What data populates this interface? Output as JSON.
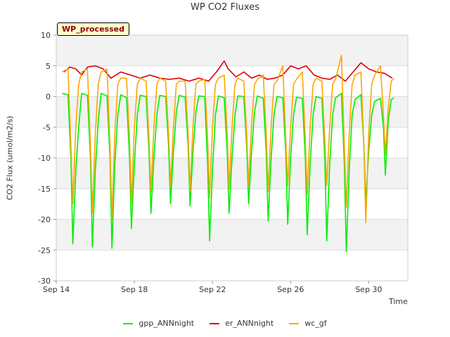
{
  "chart_data": {
    "type": "line",
    "title": "WP CO2 Fluxes",
    "badge": "WP_processed",
    "xlabel": "Time",
    "ylabel": "CO2 Flux (umol/m2/s)",
    "xlim": [
      0,
      18
    ],
    "ylim": [
      -30,
      10
    ],
    "yticks": [
      10,
      5,
      0,
      -5,
      -10,
      -15,
      -20,
      -25,
      -30
    ],
    "xticks": [
      {
        "value": 0,
        "label": "Sep 14"
      },
      {
        "value": 4,
        "label": "Sep 18"
      },
      {
        "value": 8,
        "label": "Sep 22"
      },
      {
        "value": 12,
        "label": "Sep 26"
      },
      {
        "value": 16,
        "label": "Sep 30"
      }
    ],
    "x_units": "days since Sep 14",
    "series": [
      {
        "name": "gpp_ANNnight",
        "color": "#00ee00",
        "x": [
          0.3,
          0.6,
          0.75,
          0.85,
          1.0,
          1.15,
          1.3,
          1.6,
          1.75,
          1.85,
          2.0,
          2.15,
          2.3,
          2.6,
          2.75,
          2.85,
          3.0,
          3.15,
          3.3,
          3.6,
          3.75,
          3.85,
          4.0,
          4.15,
          4.3,
          4.6,
          4.75,
          4.85,
          5.0,
          5.15,
          5.3,
          5.6,
          5.75,
          5.85,
          6.0,
          6.15,
          6.3,
          6.6,
          6.75,
          6.85,
          7.0,
          7.15,
          7.3,
          7.6,
          7.75,
          7.85,
          8.0,
          8.15,
          8.3,
          8.6,
          8.75,
          8.85,
          9.0,
          9.15,
          9.3,
          9.6,
          9.75,
          9.85,
          10.0,
          10.15,
          10.3,
          10.6,
          10.75,
          10.85,
          11.0,
          11.15,
          11.3,
          11.6,
          11.75,
          11.85,
          12.0,
          12.15,
          12.3,
          12.6,
          12.75,
          12.85,
          13.0,
          13.15,
          13.3,
          13.6,
          13.75,
          13.85,
          14.0,
          14.15,
          14.3,
          14.6,
          14.75,
          14.85,
          15.0,
          15.15,
          15.3,
          15.6,
          15.75,
          15.85,
          16.0,
          16.15,
          16.3,
          16.6,
          16.75,
          16.85,
          17.0,
          17.15,
          17.3
        ],
        "values": [
          0.5,
          0.3,
          -10.0,
          -24.0,
          -12.0,
          -5.0,
          0.5,
          0.2,
          -10.0,
          -24.5,
          -12.0,
          -4.0,
          0.5,
          0.1,
          -10.0,
          -24.7,
          -11.0,
          -3.0,
          0.3,
          -0.2,
          -10.0,
          -21.5,
          -11.0,
          -3.0,
          0.2,
          0.0,
          -9.0,
          -19.0,
          -10.0,
          -3.0,
          0.2,
          0.0,
          -8.0,
          -17.5,
          -9.0,
          -2.5,
          0.2,
          -0.1,
          -8.0,
          -17.8,
          -9.0,
          -2.5,
          0.1,
          0.0,
          -11.0,
          -23.5,
          -12.0,
          -3.0,
          0.1,
          -0.2,
          -9.0,
          -19.0,
          -10.0,
          -3.0,
          0.1,
          0.0,
          -8.0,
          -17.5,
          -9.0,
          -2.5,
          0.1,
          -0.3,
          -9.0,
          -20.3,
          -10.0,
          -3.0,
          0.0,
          -0.2,
          -9.0,
          -20.8,
          -10.0,
          -3.0,
          -0.1,
          -0.3,
          -10.0,
          -22.5,
          -11.0,
          -3.0,
          0.0,
          -0.3,
          -10.0,
          -23.5,
          -11.0,
          -3.0,
          -0.2,
          0.5,
          -11.0,
          -25.3,
          -12.0,
          -3.0,
          -0.5,
          0.3,
          -8.0,
          -17.0,
          -9.0,
          -3.0,
          -0.8,
          -0.3,
          -5.0,
          -12.8,
          -4.0,
          -0.5,
          -0.2
        ]
      },
      {
        "name": "er_ANNnight",
        "color": "#dd0000",
        "x": [
          0.4,
          0.7,
          1.0,
          1.3,
          1.6,
          2.0,
          2.4,
          2.8,
          3.3,
          3.8,
          4.3,
          4.8,
          5.3,
          5.8,
          6.3,
          6.8,
          7.3,
          7.8,
          8.2,
          8.6,
          8.8,
          9.2,
          9.6,
          10.0,
          10.4,
          10.8,
          11.2,
          11.6,
          12.0,
          12.4,
          12.8,
          13.2,
          13.6,
          14.0,
          14.4,
          14.8,
          15.2,
          15.6,
          16.0,
          16.4,
          16.8,
          17.2
        ],
        "values": [
          4.0,
          4.8,
          4.5,
          3.5,
          4.8,
          5.0,
          4.5,
          3.0,
          4.0,
          3.5,
          3.0,
          3.5,
          3.0,
          2.8,
          3.0,
          2.5,
          3.0,
          2.5,
          4.0,
          5.8,
          4.5,
          3.2,
          4.0,
          3.0,
          3.5,
          2.8,
          3.0,
          3.5,
          5.0,
          4.5,
          5.0,
          3.5,
          3.0,
          2.8,
          3.5,
          2.5,
          4.0,
          5.5,
          4.5,
          4.0,
          3.8,
          3.0
        ]
      },
      {
        "name": "wc_gf",
        "color": "#ffa500",
        "x": [
          0.3,
          0.6,
          0.75,
          0.85,
          1.0,
          1.15,
          1.3,
          1.6,
          1.75,
          1.85,
          2.0,
          2.15,
          2.3,
          2.6,
          2.75,
          2.85,
          3.0,
          3.15,
          3.3,
          3.6,
          3.75,
          3.85,
          4.0,
          4.15,
          4.3,
          4.6,
          4.75,
          4.85,
          5.0,
          5.15,
          5.3,
          5.6,
          5.75,
          5.85,
          6.0,
          6.15,
          6.3,
          6.6,
          6.75,
          6.85,
          7.0,
          7.15,
          7.3,
          7.6,
          7.75,
          7.85,
          8.0,
          8.15,
          8.3,
          8.6,
          8.75,
          8.85,
          9.0,
          9.15,
          9.3,
          9.6,
          9.75,
          9.85,
          10.0,
          10.15,
          10.3,
          10.6,
          10.75,
          10.85,
          11.0,
          11.15,
          11.3,
          11.6,
          11.75,
          11.85,
          12.0,
          12.15,
          12.3,
          12.6,
          12.75,
          12.85,
          13.0,
          13.15,
          13.3,
          13.6,
          13.75,
          13.85,
          14.0,
          14.15,
          14.3,
          14.6,
          14.75,
          14.85,
          15.0,
          15.15,
          15.3,
          15.6,
          15.75,
          15.85,
          16.0,
          16.15,
          16.3,
          16.6,
          16.75,
          16.85,
          17.0,
          17.15,
          17.3
        ],
        "values": [
          4.0,
          4.5,
          -8.0,
          -17.5,
          -5.0,
          2.0,
          4.0,
          4.5,
          -8.0,
          -19.0,
          -6.0,
          2.0,
          4.0,
          4.5,
          -8.0,
          -20.0,
          -6.0,
          2.0,
          3.0,
          3.0,
          -7.0,
          -17.5,
          -5.0,
          2.0,
          3.0,
          2.5,
          -7.0,
          -15.5,
          -5.0,
          2.0,
          3.0,
          2.5,
          -6.0,
          -14.5,
          -5.0,
          2.0,
          2.5,
          2.5,
          -6.0,
          -15.5,
          -5.0,
          2.0,
          2.5,
          2.8,
          -7.0,
          -16.5,
          -5.0,
          2.0,
          3.0,
          3.5,
          -6.0,
          -15.0,
          -5.0,
          2.0,
          3.0,
          2.5,
          -6.0,
          -14.5,
          -4.5,
          2.0,
          2.8,
          3.5,
          -6.0,
          -15.5,
          -5.0,
          2.0,
          2.5,
          5.0,
          -7.0,
          -14.5,
          -5.0,
          2.0,
          2.8,
          4.0,
          -7.0,
          -16.0,
          -5.0,
          2.0,
          3.0,
          2.5,
          -7.0,
          -14.5,
          -5.0,
          2.0,
          2.8,
          6.7,
          -8.0,
          -18.0,
          -6.0,
          2.0,
          3.5,
          4.0,
          -8.0,
          -20.5,
          -6.0,
          2.0,
          3.5,
          5.0,
          -3.0,
          -9.5,
          -2.0,
          2.5,
          3.0
        ]
      }
    ]
  }
}
